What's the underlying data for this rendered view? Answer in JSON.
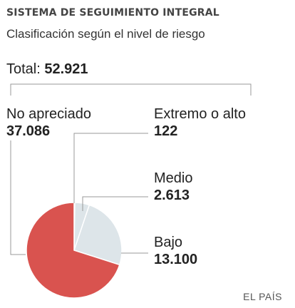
{
  "header": {
    "title": "SISTEMA DE SEGUIMIENTO INTEGRAL",
    "subtitle": "Clasificación según el nivel de riesgo"
  },
  "total": {
    "label": "Total:",
    "value": "52.921"
  },
  "source": "EL PAÍS",
  "colors": {
    "no_apreciado": "#d9534f",
    "bajo": "#dde5e9",
    "medio": "#dde5e9",
    "extremo": "#dde5e9",
    "leader": "#999999"
  },
  "chart_data": {
    "type": "pie",
    "total": 52921,
    "slices": [
      {
        "name": "No apreciado",
        "value": 37086,
        "label": "37.086"
      },
      {
        "name": "Extremo o alto",
        "value": 122,
        "label": "122"
      },
      {
        "name": "Medio",
        "value": 2613,
        "label": "2.613"
      },
      {
        "name": "Bajo",
        "value": 13100,
        "label": "13.100"
      }
    ]
  }
}
